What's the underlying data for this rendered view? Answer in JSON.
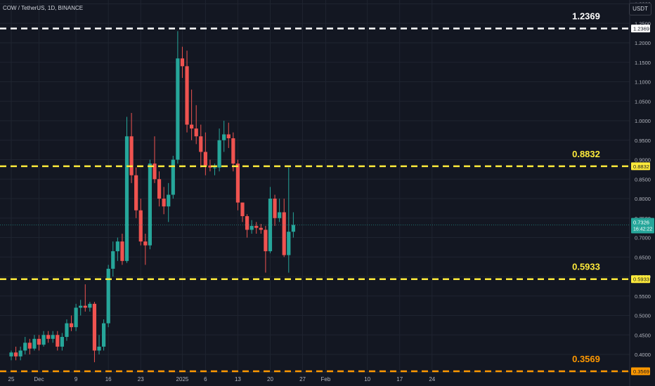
{
  "header": {
    "symbol": "COW / TetherUS, 1D, BINANCE",
    "currency": "USDT"
  },
  "colors": {
    "bg": "#131722",
    "grid": "#1f2430",
    "text": "#b2b5be",
    "up": "#26a69a",
    "down": "#ef5350",
    "white": "#ffffff",
    "yellow": "#ffeb3b",
    "orange": "#ff9800"
  },
  "chart_data": {
    "type": "candlestick",
    "ylim": [
      0.355,
      1.31
    ],
    "y_ticks": [
      "1.3000",
      "1.2500",
      "1.2000",
      "1.1500",
      "1.1000",
      "1.0500",
      "1.0000",
      "0.9500",
      "0.9000",
      "0.8500",
      "0.8000",
      "0.7500",
      "0.7000",
      "0.6500",
      "0.6000",
      "0.5500",
      "0.5000",
      "0.4500",
      "0.4000"
    ],
    "x_ticks": [
      {
        "label": "25",
        "day": 0
      },
      {
        "label": "Dec",
        "day": 6
      },
      {
        "label": "9",
        "day": 14
      },
      {
        "label": "16",
        "day": 21
      },
      {
        "label": "23",
        "day": 28
      },
      {
        "label": "2025",
        "day": 37
      },
      {
        "label": "6",
        "day": 42
      },
      {
        "label": "13",
        "day": 49
      },
      {
        "label": "20",
        "day": 56
      },
      {
        "label": "27",
        "day": 63
      },
      {
        "label": "Feb",
        "day": 68
      },
      {
        "label": "10",
        "day": 77
      },
      {
        "label": "17",
        "day": 84
      },
      {
        "label": "24",
        "day": 91
      }
    ],
    "candles": [
      [
        0.395,
        0.405,
        0.385,
        0.41
      ],
      [
        0.405,
        0.395,
        0.385,
        0.42
      ],
      [
        0.395,
        0.41,
        0.385,
        0.42
      ],
      [
        0.41,
        0.43,
        0.4,
        0.445
      ],
      [
        0.43,
        0.415,
        0.4,
        0.44
      ],
      [
        0.415,
        0.44,
        0.41,
        0.45
      ],
      [
        0.44,
        0.425,
        0.41,
        0.45
      ],
      [
        0.425,
        0.45,
        0.42,
        0.46
      ],
      [
        0.45,
        0.44,
        0.43,
        0.46
      ],
      [
        0.44,
        0.45,
        0.43,
        0.46
      ],
      [
        0.45,
        0.42,
        0.41,
        0.46
      ],
      [
        0.42,
        0.445,
        0.41,
        0.455
      ],
      [
        0.445,
        0.48,
        0.435,
        0.49
      ],
      [
        0.48,
        0.47,
        0.46,
        0.5
      ],
      [
        0.47,
        0.52,
        0.46,
        0.53
      ],
      [
        0.52,
        0.525,
        0.5,
        0.54
      ],
      [
        0.525,
        0.52,
        0.51,
        0.58
      ],
      [
        0.52,
        0.53,
        0.51,
        0.535
      ],
      [
        0.53,
        0.41,
        0.38,
        0.535
      ],
      [
        0.41,
        0.42,
        0.4,
        0.45
      ],
      [
        0.42,
        0.48,
        0.41,
        0.49
      ],
      [
        0.48,
        0.62,
        0.47,
        0.63
      ],
      [
        0.62,
        0.665,
        0.6,
        0.69
      ],
      [
        0.665,
        0.69,
        0.64,
        0.7
      ],
      [
        0.69,
        0.64,
        0.63,
        0.71
      ],
      [
        0.64,
        0.96,
        0.635,
        1.01
      ],
      [
        0.96,
        0.86,
        0.84,
        1.02
      ],
      [
        0.86,
        0.77,
        0.75,
        0.88
      ],
      [
        0.77,
        0.69,
        0.68,
        0.8
      ],
      [
        0.69,
        0.68,
        0.63,
        0.71
      ],
      [
        0.68,
        0.89,
        0.67,
        0.9
      ],
      [
        0.89,
        0.85,
        0.84,
        0.96
      ],
      [
        0.85,
        0.8,
        0.78,
        0.87
      ],
      [
        0.8,
        0.78,
        0.76,
        0.83
      ],
      [
        0.78,
        0.81,
        0.74,
        0.84
      ],
      [
        0.81,
        0.9,
        0.8,
        0.91
      ],
      [
        0.9,
        1.16,
        0.89,
        1.23
      ],
      [
        1.16,
        1.14,
        1.11,
        1.19
      ],
      [
        1.14,
        0.99,
        0.97,
        1.18
      ],
      [
        0.99,
        0.98,
        0.95,
        1.08
      ],
      [
        0.98,
        0.96,
        0.94,
        1.04
      ],
      [
        0.96,
        0.92,
        0.88,
        0.99
      ],
      [
        0.92,
        0.885,
        0.86,
        0.97
      ],
      [
        0.885,
        0.88,
        0.87,
        0.9
      ],
      [
        0.88,
        0.88,
        0.86,
        0.89
      ],
      [
        0.88,
        0.95,
        0.87,
        0.98
      ],
      [
        0.95,
        0.965,
        0.92,
        1.0
      ],
      [
        0.965,
        0.955,
        0.93,
        0.995
      ],
      [
        0.955,
        0.89,
        0.87,
        0.97
      ],
      [
        0.89,
        0.79,
        0.77,
        0.9
      ],
      [
        0.79,
        0.755,
        0.74,
        0.79
      ],
      [
        0.755,
        0.72,
        0.7,
        0.76
      ],
      [
        0.72,
        0.73,
        0.71,
        0.745
      ],
      [
        0.73,
        0.725,
        0.71,
        0.74
      ],
      [
        0.725,
        0.72,
        0.71,
        0.735
      ],
      [
        0.72,
        0.665,
        0.61,
        0.73
      ],
      [
        0.665,
        0.8,
        0.66,
        0.83
      ],
      [
        0.8,
        0.75,
        0.73,
        0.81
      ],
      [
        0.75,
        0.765,
        0.74,
        0.8
      ],
      [
        0.765,
        0.655,
        0.65,
        0.8
      ],
      [
        0.655,
        0.715,
        0.61,
        0.88
      ],
      [
        0.715,
        0.7326,
        0.7,
        0.765
      ]
    ],
    "levels": [
      {
        "value": 1.2369,
        "label": "1.2369",
        "color": "white",
        "style": "dashed"
      },
      {
        "value": 0.8832,
        "label": "0.8832",
        "color": "yellow",
        "style": "dashed"
      },
      {
        "value": 0.5933,
        "label": "0.5933",
        "color": "yellow",
        "style": "dashed"
      },
      {
        "value": 0.3569,
        "label": "0.3569",
        "color": "orange",
        "style": "dashed"
      }
    ],
    "last_price": {
      "value": 0.7326,
      "label": "0.7326",
      "countdown": "16:42:22"
    }
  }
}
